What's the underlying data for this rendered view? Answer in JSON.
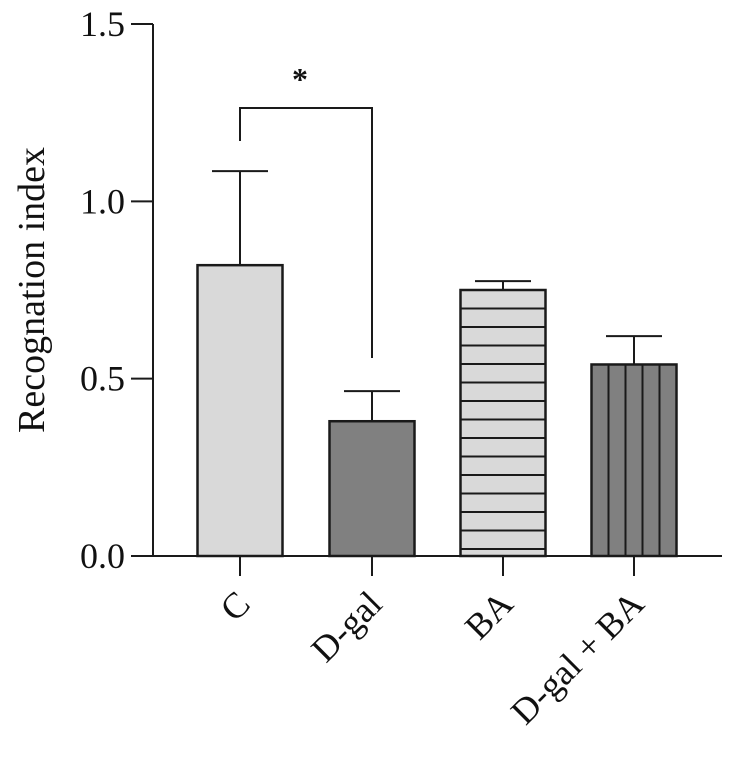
{
  "chart_data": {
    "type": "bar",
    "title": "",
    "xlabel": "",
    "ylabel": "Recognation index",
    "ylim": [
      0,
      1.5
    ],
    "yticks": [
      "0.0",
      "0.5",
      "1.0",
      "1.5"
    ],
    "grid": false,
    "categories": [
      "C",
      "D-gal",
      "BA",
      "D-gal + BA"
    ],
    "values": [
      0.82,
      0.38,
      0.75,
      0.54
    ],
    "error": [
      0.265,
      0.085,
      0.025,
      0.08
    ],
    "fills": [
      {
        "color": "#d9d9d9",
        "pattern": "none"
      },
      {
        "color": "#808080",
        "pattern": "none"
      },
      {
        "color": "#d9d9d9",
        "pattern": "horizontal"
      },
      {
        "color": "#808080",
        "pattern": "vertical"
      }
    ],
    "significance": [
      {
        "from": "C",
        "to": "D-gal",
        "label": "*"
      }
    ]
  }
}
